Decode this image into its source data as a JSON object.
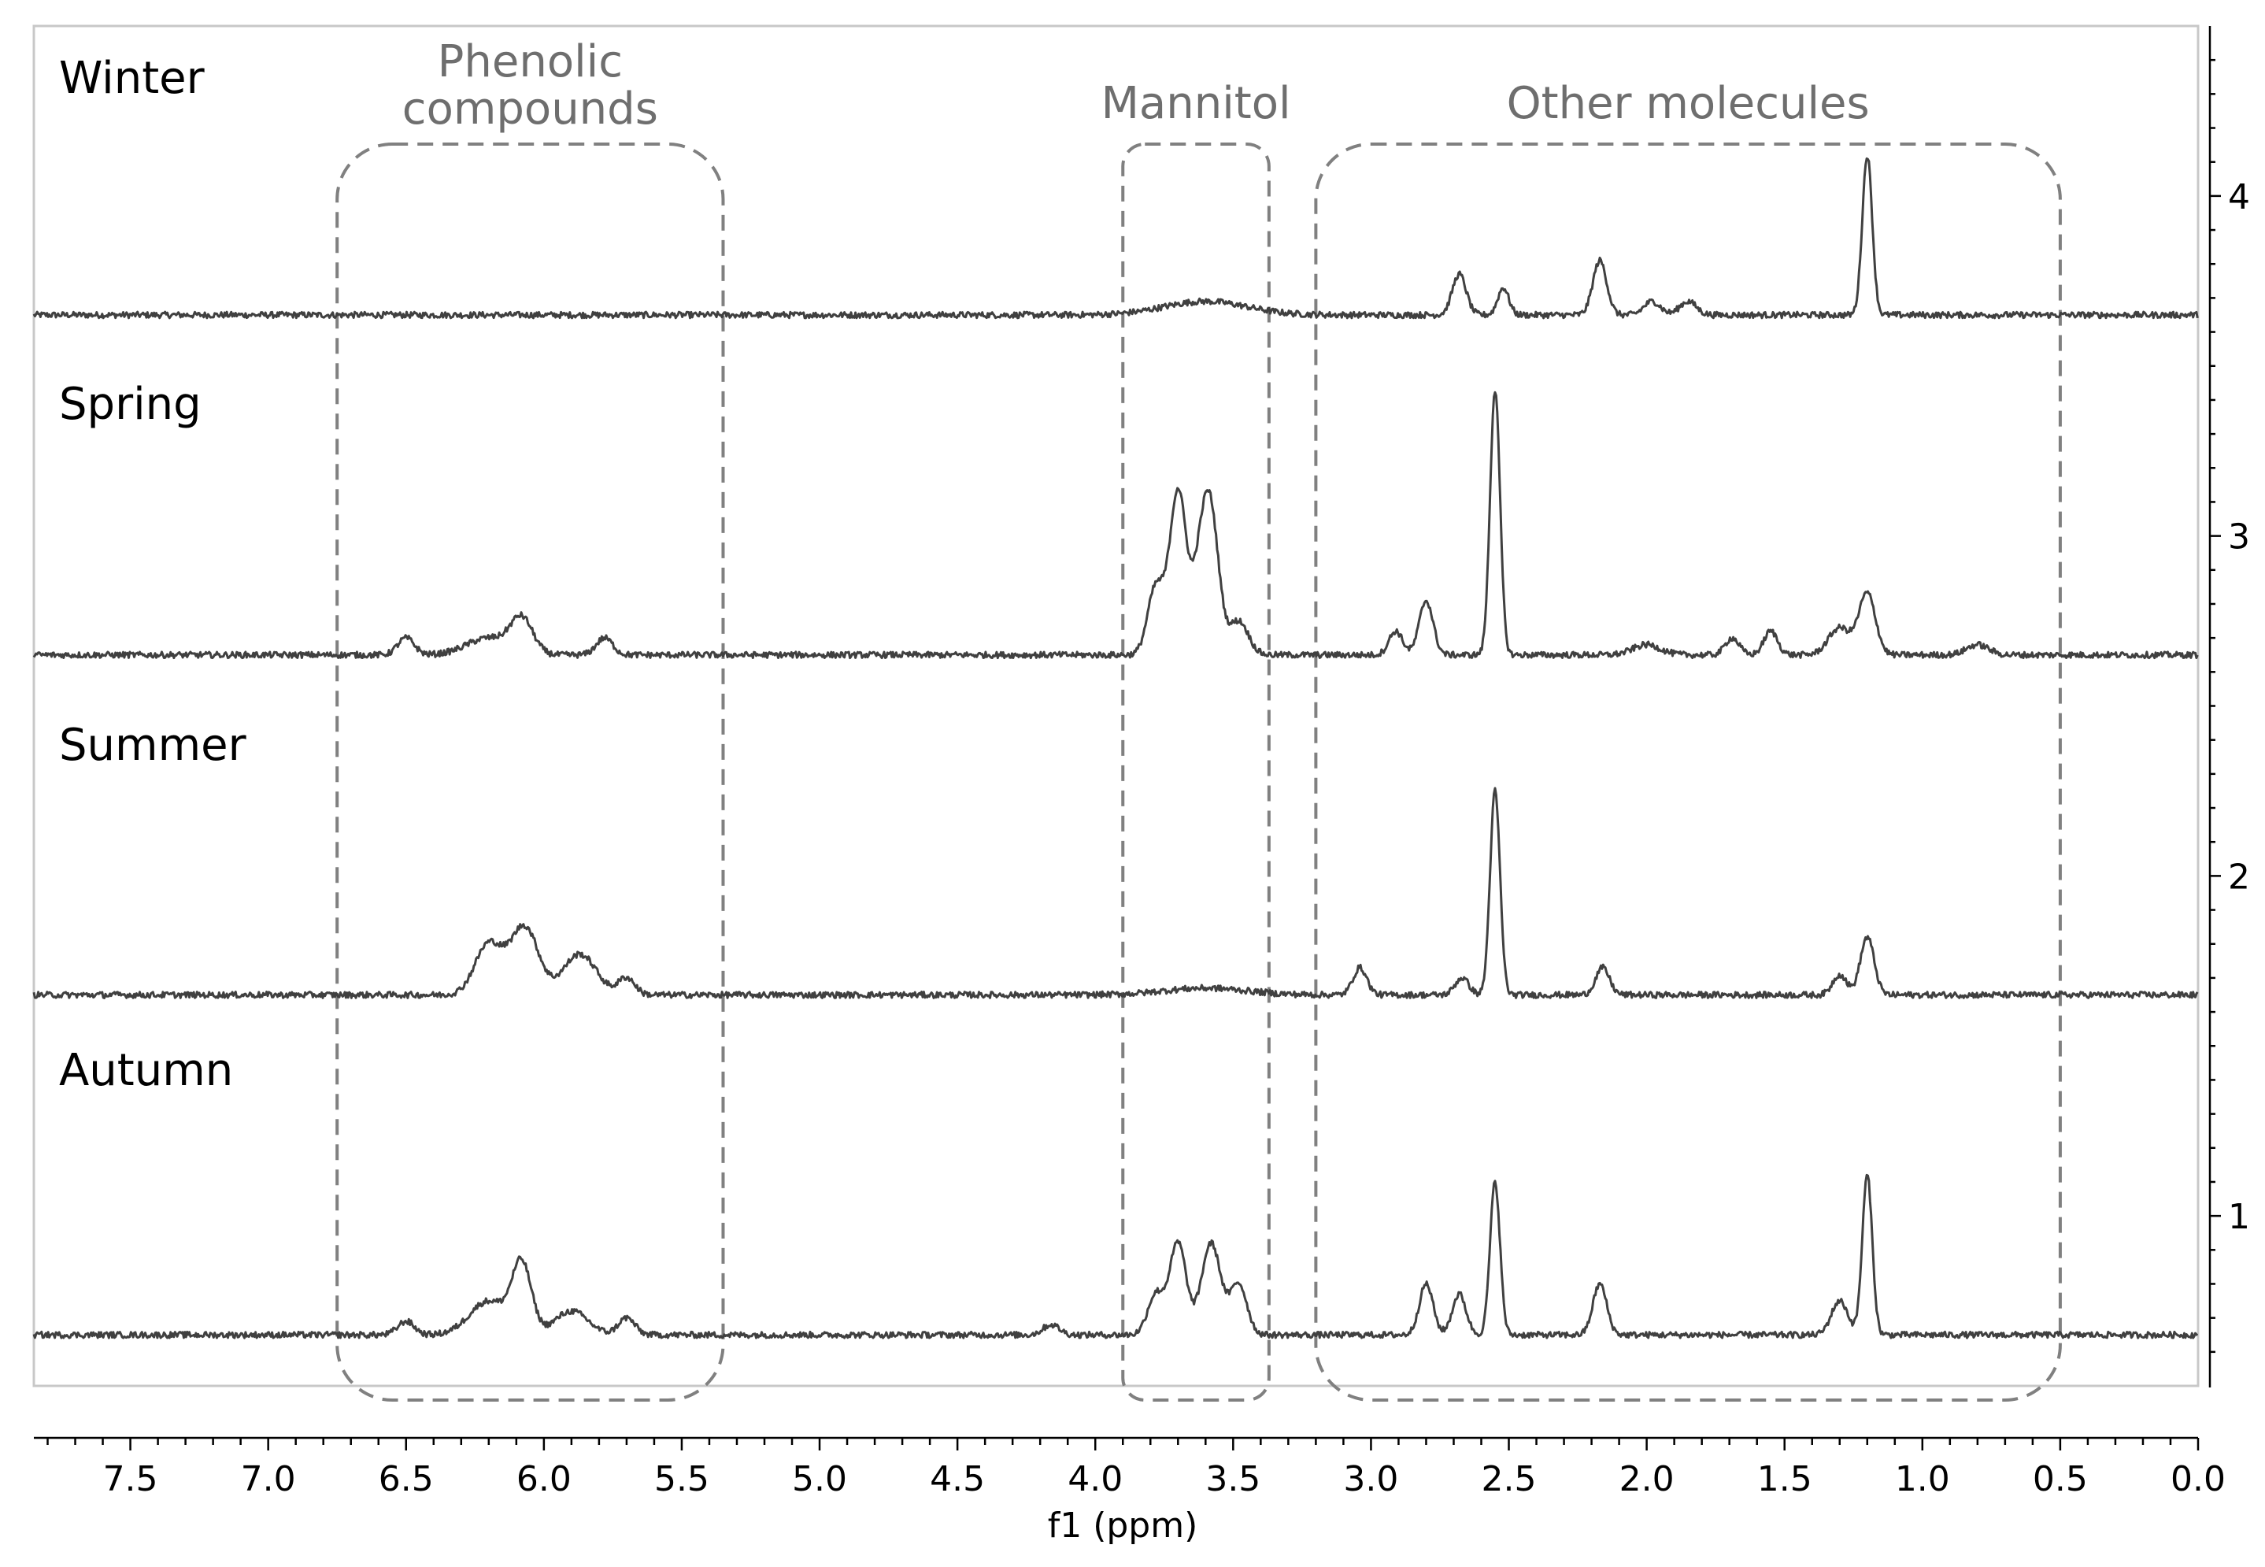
{
  "chart_data": {
    "type": "line",
    "title": "",
    "xlabel": "f1 (ppm)",
    "ylabel": "",
    "xlim": [
      7.85,
      0.0
    ],
    "x_direction": "reversed",
    "ylim": [
      0.5,
      4.5
    ],
    "x_ticks": [
      "7.5",
      "7.0",
      "6.5",
      "6.0",
      "5.5",
      "5.0",
      "4.5",
      "4.0",
      "3.5",
      "3.0",
      "2.5",
      "2.0",
      "1.5",
      "1.0",
      "0.5",
      "0.0"
    ],
    "y_ticks": [
      "1",
      "2",
      "3",
      "4"
    ],
    "grid": false,
    "legend": "none",
    "stacked_offset": true,
    "series": [
      {
        "name": "Winter",
        "baseline": 3.65,
        "peaks": [
          {
            "ppm": 3.6,
            "height": 0.04,
            "width": 0.15
          },
          {
            "ppm": 2.68,
            "height": 0.12,
            "width": 0.025
          },
          {
            "ppm": 2.52,
            "height": 0.08,
            "width": 0.02
          },
          {
            "ppm": 2.17,
            "height": 0.16,
            "width": 0.025
          },
          {
            "ppm": 1.98,
            "height": 0.04,
            "width": 0.03
          },
          {
            "ppm": 1.85,
            "height": 0.04,
            "width": 0.03
          },
          {
            "ppm": 1.2,
            "height": 0.47,
            "width": 0.018
          }
        ]
      },
      {
        "name": "Spring",
        "baseline": 2.65,
        "peaks": [
          {
            "ppm": 6.5,
            "height": 0.05,
            "width": 0.03
          },
          {
            "ppm": 6.2,
            "height": 0.05,
            "width": 0.08
          },
          {
            "ppm": 6.08,
            "height": 0.1,
            "width": 0.04
          },
          {
            "ppm": 5.78,
            "height": 0.05,
            "width": 0.03
          },
          {
            "ppm": 3.78,
            "height": 0.2,
            "width": 0.03
          },
          {
            "ppm": 3.7,
            "height": 0.48,
            "width": 0.03
          },
          {
            "ppm": 3.62,
            "height": 0.22,
            "width": 0.03
          },
          {
            "ppm": 3.58,
            "height": 0.37,
            "width": 0.03
          },
          {
            "ppm": 3.48,
            "height": 0.1,
            "width": 0.035
          },
          {
            "ppm": 2.91,
            "height": 0.07,
            "width": 0.025
          },
          {
            "ppm": 2.8,
            "height": 0.16,
            "width": 0.025
          },
          {
            "ppm": 2.55,
            "height": 0.78,
            "width": 0.018
          },
          {
            "ppm": 2.0,
            "height": 0.03,
            "width": 0.05
          },
          {
            "ppm": 1.69,
            "height": 0.05,
            "width": 0.025
          },
          {
            "ppm": 1.55,
            "height": 0.07,
            "width": 0.025
          },
          {
            "ppm": 1.3,
            "height": 0.08,
            "width": 0.04
          },
          {
            "ppm": 1.2,
            "height": 0.18,
            "width": 0.03
          },
          {
            "ppm": 0.8,
            "height": 0.03,
            "width": 0.04
          }
        ]
      },
      {
        "name": "Summer",
        "baseline": 1.65,
        "peaks": [
          {
            "ppm": 6.2,
            "height": 0.15,
            "width": 0.05
          },
          {
            "ppm": 6.07,
            "height": 0.2,
            "width": 0.05
          },
          {
            "ppm": 5.87,
            "height": 0.12,
            "width": 0.06
          },
          {
            "ppm": 5.7,
            "height": 0.05,
            "width": 0.03
          },
          {
            "ppm": 3.6,
            "height": 0.02,
            "width": 0.15
          },
          {
            "ppm": 3.04,
            "height": 0.08,
            "width": 0.025
          },
          {
            "ppm": 2.67,
            "height": 0.05,
            "width": 0.025
          },
          {
            "ppm": 2.55,
            "height": 0.6,
            "width": 0.018
          },
          {
            "ppm": 2.16,
            "height": 0.08,
            "width": 0.025
          },
          {
            "ppm": 1.3,
            "height": 0.06,
            "width": 0.025
          },
          {
            "ppm": 1.2,
            "height": 0.17,
            "width": 0.025
          }
        ]
      },
      {
        "name": "Autumn",
        "baseline": 0.65,
        "peaks": [
          {
            "ppm": 6.5,
            "height": 0.04,
            "width": 0.03
          },
          {
            "ppm": 6.2,
            "height": 0.1,
            "width": 0.07
          },
          {
            "ppm": 6.08,
            "height": 0.2,
            "width": 0.035
          },
          {
            "ppm": 5.9,
            "height": 0.07,
            "width": 0.06
          },
          {
            "ppm": 5.7,
            "height": 0.05,
            "width": 0.03
          },
          {
            "ppm": 4.16,
            "height": 0.03,
            "width": 0.03
          },
          {
            "ppm": 3.78,
            "height": 0.12,
            "width": 0.03
          },
          {
            "ppm": 3.7,
            "height": 0.27,
            "width": 0.03
          },
          {
            "ppm": 3.58,
            "height": 0.27,
            "width": 0.035
          },
          {
            "ppm": 3.48,
            "height": 0.15,
            "width": 0.03
          },
          {
            "ppm": 2.8,
            "height": 0.15,
            "width": 0.025
          },
          {
            "ppm": 2.68,
            "height": 0.12,
            "width": 0.025
          },
          {
            "ppm": 2.55,
            "height": 0.45,
            "width": 0.018
          },
          {
            "ppm": 2.17,
            "height": 0.15,
            "width": 0.025
          },
          {
            "ppm": 1.3,
            "height": 0.1,
            "width": 0.03
          },
          {
            "ppm": 1.2,
            "height": 0.47,
            "width": 0.018
          }
        ]
      }
    ],
    "annotations": [
      {
        "label": "Phenolic compounds",
        "lines": [
          "Phenolic",
          "compounds"
        ],
        "ppm_range": [
          6.75,
          5.35
        ]
      },
      {
        "label": "Mannitol",
        "lines": [
          "Mannitol"
        ],
        "ppm_range": [
          3.9,
          3.37
        ]
      },
      {
        "label": "Other molecules",
        "lines": [
          "Other molecules"
        ],
        "ppm_range": [
          3.2,
          0.5
        ]
      }
    ]
  },
  "colors": {
    "spectrum": "#404040",
    "region_box": "#808080",
    "region_label": "#6e6e6e",
    "frame": "#c8c8c8"
  }
}
